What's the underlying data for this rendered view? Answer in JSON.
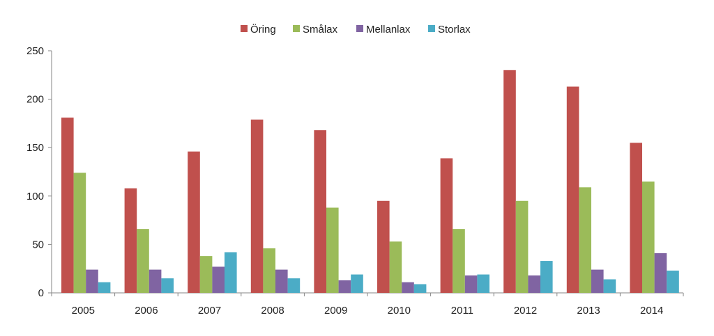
{
  "chart_data": {
    "type": "bar",
    "title": "",
    "xlabel": "",
    "ylabel": "",
    "categories": [
      "2005",
      "2006",
      "2007",
      "2008",
      "2009",
      "2010",
      "2011",
      "2012",
      "2013",
      "2014"
    ],
    "series": [
      {
        "name": "Öring",
        "color": "#c0504d",
        "values": [
          181,
          108,
          146,
          179,
          168,
          95,
          139,
          230,
          213,
          155
        ]
      },
      {
        "name": "Smålax",
        "color": "#9bbb59",
        "values": [
          124,
          66,
          38,
          46,
          88,
          53,
          66,
          95,
          109,
          115
        ]
      },
      {
        "name": "Mellanlax",
        "color": "#8064a2",
        "values": [
          24,
          24,
          27,
          24,
          13,
          11,
          18,
          18,
          24,
          41
        ]
      },
      {
        "name": "Storlax",
        "color": "#4bacc6",
        "values": [
          11,
          15,
          42,
          15,
          19,
          9,
          19,
          33,
          14,
          23
        ]
      }
    ],
    "ylim": [
      0,
      250
    ],
    "yticks": [
      "0",
      "50",
      "100",
      "150",
      "200",
      "250"
    ],
    "legend_position": "top",
    "grid": false
  }
}
